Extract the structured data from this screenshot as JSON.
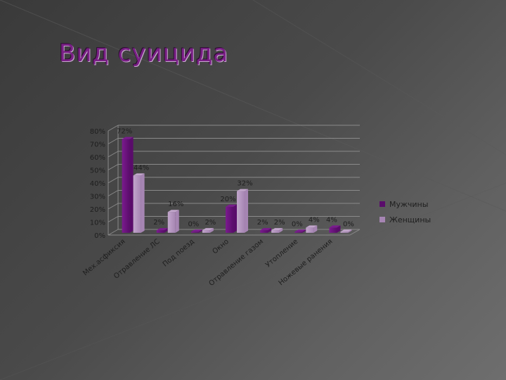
{
  "slide": {
    "title": "Вид суицида"
  },
  "colors": {
    "men": "#5a0c6b",
    "men_light": "#7a1b8e",
    "women": "#a685b3",
    "women_light": "#c2a6cc",
    "grid": "#8a8a8a",
    "text": "#1e1e1e"
  },
  "chart_data": {
    "type": "bar",
    "title": "",
    "xlabel": "",
    "ylabel": "",
    "ylim": [
      0,
      80
    ],
    "y_tick_labels": [
      "0%",
      "10%",
      "20%",
      "30%",
      "40%",
      "50%",
      "60%",
      "70%",
      "80%"
    ],
    "y_ticks": [
      0,
      10,
      20,
      30,
      40,
      50,
      60,
      70,
      80
    ],
    "categories": [
      "Мех.асфиксия",
      "Отравление ЛС",
      "Под поезд",
      "Окно",
      "Отравление газом",
      "Утопление",
      "Ножевые ранения"
    ],
    "series": [
      {
        "name": "Мужчины",
        "values": [
          72,
          2,
          0,
          20,
          2,
          0,
          4
        ],
        "labels": [
          "72%",
          "2%",
          "0%",
          "20%",
          "2%",
          "0%",
          "4%"
        ]
      },
      {
        "name": "Женщины",
        "values": [
          44,
          16,
          2,
          32,
          2,
          4,
          0
        ],
        "labels": [
          "44%",
          "16%",
          "2%",
          "32%",
          "2%",
          "4%",
          "0%"
        ]
      }
    ],
    "legend_position": "right",
    "grid": true,
    "style": "3d-bar"
  }
}
